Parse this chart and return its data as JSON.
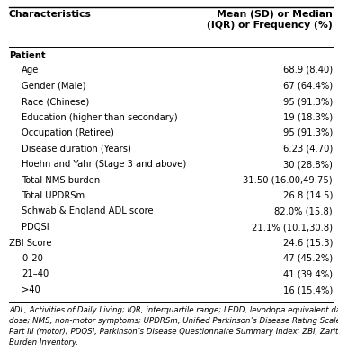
{
  "header_left": "Characteristics",
  "header_right": "Mean (SD) or Median\n(IQR) or Frequency (%)",
  "section_patient": "Patient",
  "rows": [
    {
      "label": "Age",
      "indent": 1,
      "value": "68.9 (8.40)"
    },
    {
      "label": "Gender (Male)",
      "indent": 1,
      "value": "67 (64.4%)"
    },
    {
      "label": "Race (Chinese)",
      "indent": 1,
      "value": "95 (91.3%)"
    },
    {
      "label": "Education (higher than secondary)",
      "indent": 1,
      "value": "19 (18.3%)"
    },
    {
      "label": "Occupation (Retiree)",
      "indent": 1,
      "value": "95 (91.3%)"
    },
    {
      "label": "Disease duration (Years)",
      "indent": 1,
      "value": "6.23 (4.70)"
    },
    {
      "label": "Hoehn and Yahr (Stage 3 and above)",
      "indent": 1,
      "value": "30 (28.8%)"
    },
    {
      "label": "Total NMS burden",
      "indent": 1,
      "value": "31.50 (16.00,49.75)"
    },
    {
      "label": "Total UPDRSm",
      "indent": 1,
      "value": "26.8 (14.5)"
    },
    {
      "label": "Schwab & England ADL score",
      "indent": 1,
      "value": "82.0% (15.8)"
    },
    {
      "label": "PDQSI",
      "indent": 1,
      "value": "21.1% (10.1,30.8)"
    },
    {
      "label": "ZBI Score",
      "indent": 0,
      "value": "24.6 (15.3)"
    },
    {
      "label": "0–20",
      "indent": 1,
      "value": "47 (45.2%)"
    },
    {
      "label": "21–40",
      "indent": 1,
      "value": "41 (39.4%)"
    },
    {
      "label": ">40",
      "indent": 1,
      "value": "16 (15.4%)"
    }
  ],
  "footnote": "ADL, Activities of Daily Living; IQR, interquartile range; LEDD, levodopa equivalent daily\ndose; NMS, non-motor symptoms; UPDRSm, Unified Parkinson’s Disease Rating Scale\nPart III (motor); PDQSI, Parkinson’s Disease Questionnaire Summary Index; ZBI, Zarit\nBurden Inventory.",
  "bg_color": "#ffffff",
  "text_color": "#000000",
  "header_fontsize": 7.8,
  "row_fontsize": 7.2,
  "footnote_fontsize": 6.2
}
